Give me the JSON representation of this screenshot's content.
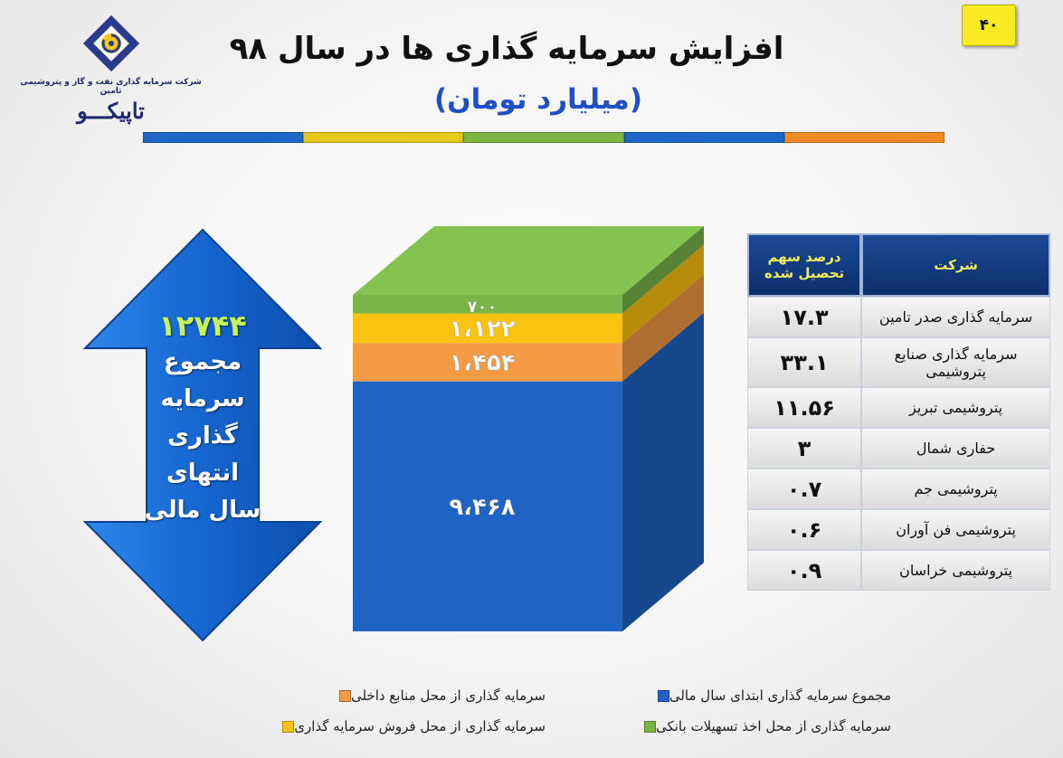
{
  "page_number": "۴۰",
  "logo": {
    "company_name": "شرکت سرمایه گذاری نفت و گاز و پتروشیمی تامین",
    "brand": "تاپیکـــو"
  },
  "title": "افزایش سرمایه گذاری ها در سال ۹۸",
  "subtitle": "(میلیارد تومان)",
  "strip_colors": [
    "#f08a24",
    "#1e67c8",
    "#7ab640",
    "#e9c81c",
    "#1e67c8"
  ],
  "arrow": {
    "total": "۱۲۷۴۴",
    "label_lines": [
      "مجموع",
      "سرمایه",
      "گذاری",
      "انتهای",
      "سال مالی"
    ]
  },
  "table": {
    "header_company": "شرکت",
    "header_percent": "درصد سهم تحصیل شده",
    "rows": [
      {
        "company": "سرمایه گذاری صدر تامین",
        "percent": "۱۷.۳"
      },
      {
        "company": "سرمایه گذاری صنایع پتروشیمی",
        "percent": "۳۳.۱"
      },
      {
        "company": "پتروشیمی تبریز",
        "percent": "۱۱.۵۶"
      },
      {
        "company": "حفاری شمال",
        "percent": "۳"
      },
      {
        "company": "پتروشیمی جم",
        "percent": "۰.۷"
      },
      {
        "company": "پتروشیمی فن آوران",
        "percent": "۰.۶"
      },
      {
        "company": "پتروشیمی خراسان",
        "percent": "۰.۹"
      }
    ]
  },
  "chart_data": {
    "type": "bar",
    "stacked": true,
    "series": [
      {
        "name": "مجموع سرمایه گذاری ابتدای سال مالی",
        "value": 9468,
        "label": "۹،۴۶۸",
        "color": "#1f64c4"
      },
      {
        "name": "سرمایه گذاری از محل منابع داخلی",
        "value": 1454,
        "label": "۱،۴۵۴",
        "color": "#f39a44"
      },
      {
        "name": "سرمایه گذاری از محل فروش سرمایه گذاری",
        "value": 1122,
        "label": "۱،۱۲۲",
        "color": "#fbc311"
      },
      {
        "name": "سرمایه گذاری از محل اخذ تسهیلات بانکی",
        "value": 700,
        "label": "۷۰۰",
        "color": "#7ab54a"
      }
    ],
    "legend_position": "bottom"
  }
}
